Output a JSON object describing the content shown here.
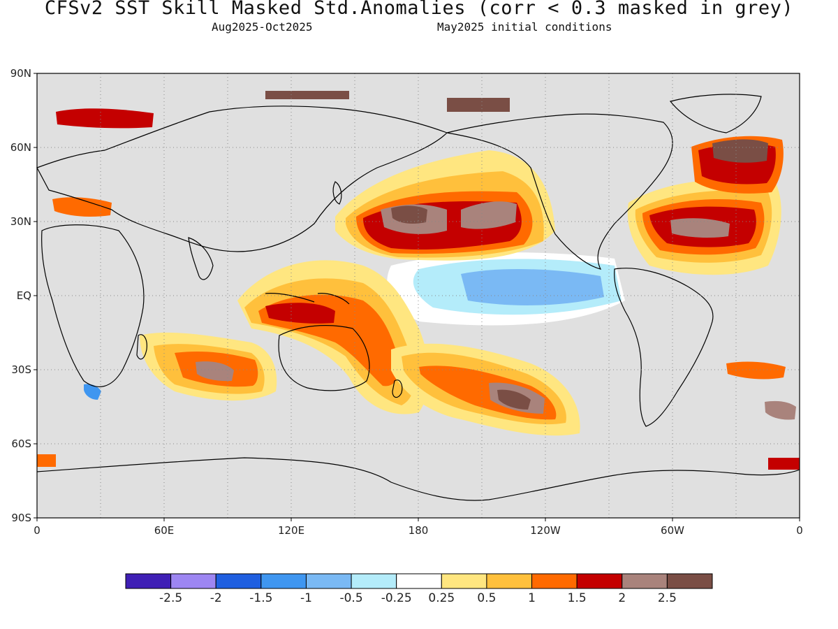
{
  "title": "CFSv2   SST Skill Masked Std.Anomalies (corr < 0.3 masked in grey)",
  "subtitle_left": "Aug2025-Oct2025",
  "subtitle_right": "May2025 initial conditions",
  "map": {
    "projection": "equirectangular",
    "lon_range": [
      0,
      360
    ],
    "lat_range": [
      -90,
      90
    ],
    "mask_color": "#e0e0e0",
    "land_outline": "black",
    "gridlines": "dotted",
    "lat_ticks": [
      "90N",
      "60N",
      "30N",
      "EQ",
      "30S",
      "60S",
      "90S"
    ],
    "lon_ticks": [
      "0",
      "60E",
      "120E",
      "180",
      "120W",
      "60W",
      "0"
    ]
  },
  "colorbar": {
    "colors": [
      "#3f1fb5",
      "#9d86f2",
      "#1f5fe0",
      "#3f96f0",
      "#7ab9f4",
      "#b4ecfa",
      "#ffffff",
      "#ffe680",
      "#ffc03c",
      "#ff6a00",
      "#c40000",
      "#a9837c",
      "#7a4e45"
    ],
    "labels": [
      "-2.5",
      "-2",
      "-1.5",
      "-1",
      "-0.5",
      "-0.25",
      "0.25",
      "0.5",
      "1",
      "1.5",
      "2",
      "2.5"
    ]
  }
}
